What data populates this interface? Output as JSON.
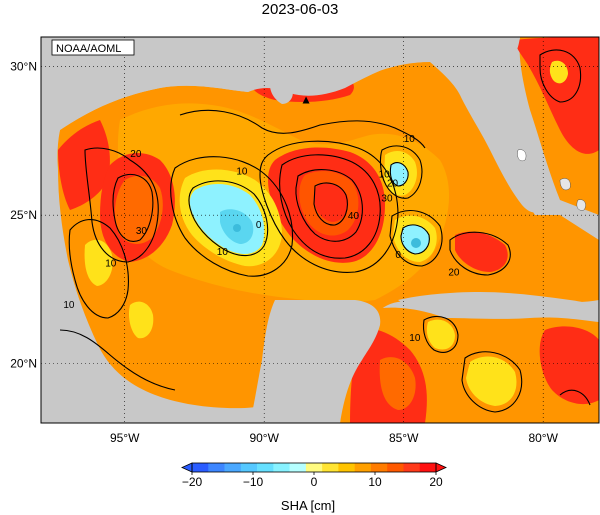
{
  "title": "2023-06-03",
  "credit": "NOAA/AOML",
  "lat_labels": [
    {
      "text": "30°N",
      "lat": 30
    },
    {
      "text": "25°N",
      "lat": 25
    },
    {
      "text": "20°N",
      "lat": 20
    }
  ],
  "lon_labels": [
    {
      "text": "95°W",
      "lon": -95
    },
    {
      "text": "90°W",
      "lon": -90
    },
    {
      "text": "85°W",
      "lon": -85
    },
    {
      "text": "80°W",
      "lon": -80
    }
  ],
  "map_extent": {
    "lon_min": -98,
    "lon_max": -78,
    "lat_min": 18,
    "lat_max": 31
  },
  "contour_labels": [
    {
      "text": "10",
      "lon": -84.8,
      "lat": 27.6
    },
    {
      "text": "20",
      "lon": -94.6,
      "lat": 27.1
    },
    {
      "text": "10",
      "lon": -90.8,
      "lat": 26.5
    },
    {
      "text": "0",
      "lon": -90.2,
      "lat": 24.7
    },
    {
      "text": "10",
      "lon": -91.5,
      "lat": 23.8
    },
    {
      "text": "30",
      "lon": -94.4,
      "lat": 24.5
    },
    {
      "text": "10",
      "lon": -95.5,
      "lat": 23.4
    },
    {
      "text": "10",
      "lon": -97.0,
      "lat": 22.0
    },
    {
      "text": "40",
      "lon": -86.8,
      "lat": 25.0
    },
    {
      "text": "30",
      "lon": -85.6,
      "lat": 25.6
    },
    {
      "text": "10",
      "lon": -85.7,
      "lat": 26.4
    },
    {
      "text": "20",
      "lon": -85.4,
      "lat": 26.1
    },
    {
      "text": "0",
      "lon": -85.2,
      "lat": 23.7
    },
    {
      "text": "20",
      "lon": -83.2,
      "lat": 23.1
    },
    {
      "text": "10",
      "lon": -84.6,
      "lat": 20.9
    }
  ],
  "marker": {
    "symbol": "▲",
    "lon": -88.5,
    "lat": 28.9
  },
  "colorbar": {
    "label": "SHA [cm]",
    "min": -20,
    "max": 20,
    "ticks": [
      {
        "text": "−20",
        "value": -20
      },
      {
        "text": "−10",
        "value": -10
      },
      {
        "text": "0",
        "value": 0
      },
      {
        "text": "10",
        "value": 10
      },
      {
        "text": "20",
        "value": 20
      }
    ],
    "colors": [
      "#2a5cff",
      "#3d86ff",
      "#4aa8ff",
      "#55c8ff",
      "#66e0ff",
      "#88f2ff",
      "#b6ffff",
      "#fffb80",
      "#ffe433",
      "#ffc400",
      "#ffa000",
      "#ff7c00",
      "#ff5900",
      "#ff3a1a",
      "#ff1010"
    ]
  },
  "colors": {
    "land": "#c8c8c8",
    "ocean_base": "#ff9500",
    "low": "#8ef2ff",
    "lowest": "#5ad6f0",
    "high": "#ff2d15",
    "yellow": "#ffe21a"
  }
}
